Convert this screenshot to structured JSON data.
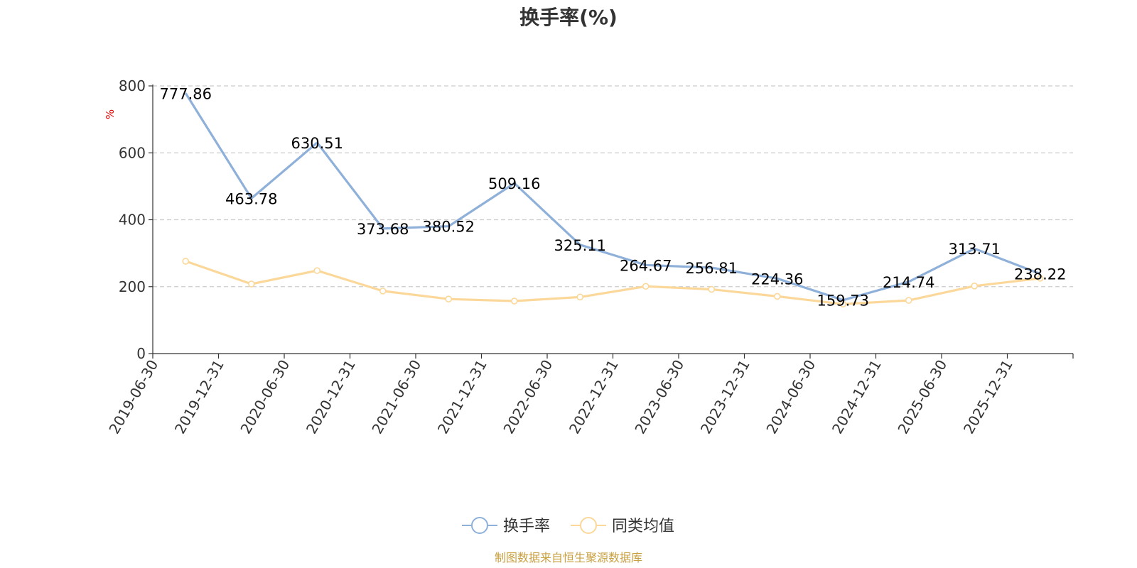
{
  "chart_data": {
    "type": "line",
    "title": "换手率(%)",
    "ylabel": "%",
    "ylim": [
      0,
      800
    ],
    "yticks": [
      0,
      200,
      400,
      600,
      800
    ],
    "grid": true,
    "legend_position": "bottom",
    "categories": [
      "2019-06-30",
      "2019-12-31",
      "2020-06-30",
      "2020-12-31",
      "2021-06-30",
      "2021-12-31",
      "2022-06-30",
      "2022-12-31",
      "2023-06-30",
      "2023-12-31",
      "2024-06-30",
      "2024-12-31",
      "2025-06-30",
      "2025-12-31"
    ],
    "series": [
      {
        "name": "换手率",
        "color": "#8eb0d9",
        "values": [
          777.86,
          463.78,
          630.51,
          373.68,
          380.52,
          509.16,
          325.11,
          264.67,
          256.81,
          224.36,
          159.73,
          214.74,
          313.71,
          238.22
        ],
        "labels": [
          "777.86",
          "463.78",
          "630.51",
          "373.68",
          "380.52",
          "509.16",
          "325.11",
          "264.67",
          "256.81",
          "224.36",
          "159.73",
          "214.74",
          "313.71",
          "238.22"
        ]
      },
      {
        "name": "同类均值",
        "color": "#fbd89a",
        "values": [
          276,
          208,
          248,
          187,
          163,
          157,
          169,
          201,
          192,
          171,
          148,
          159,
          202,
          225
        ]
      }
    ],
    "source": "制图数据来自恒生聚源数据库"
  }
}
